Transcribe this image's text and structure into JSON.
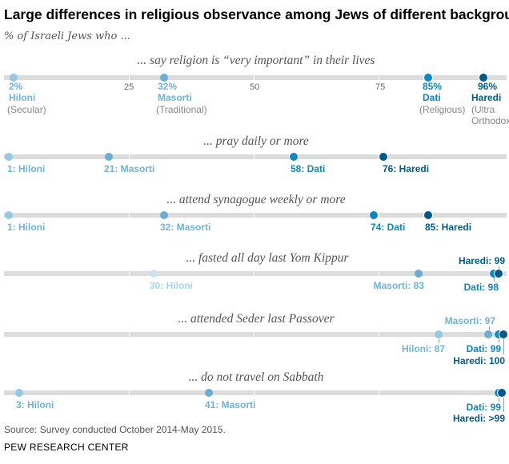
{
  "title": "Large differences in religious observance among Jews of different backgrounds",
  "subtitle": "% of Israeli Jews who ...",
  "source": "Source: Survey conducted October 2014-May 2015.",
  "org": "PEW RESEARCH CENTER",
  "chart_data": {
    "type": "dot",
    "xlim": [
      0,
      100
    ],
    "ticks": [
      "25",
      "50",
      "75"
    ],
    "colors": {
      "Hiloni": "#92c8e8",
      "Masorti": "#6aaed6",
      "Dati": "#0b8bc5",
      "Haredi": "#005a8c"
    },
    "group_notes": {
      "Hiloni": "(Secular)",
      "Masorti": "(Traditional)",
      "Dati": "(Religious)",
      "Haredi_1": "(Ultra",
      "Haredi_2": "Orthodox)"
    },
    "rows": [
      {
        "title": "... say religion is “very important” in their lives",
        "points": [
          {
            "group": "Hiloni",
            "value": 2,
            "label": "2%"
          },
          {
            "group": "Masorti",
            "value": 32,
            "label": "32%"
          },
          {
            "group": "Dati",
            "value": 85,
            "label": "85%"
          },
          {
            "group": "Haredi",
            "value": 96,
            "label": "96%"
          }
        ]
      },
      {
        "title": "... pray daily or more",
        "points": [
          {
            "group": "Hiloni",
            "value": 1,
            "label": "1: Hiloni"
          },
          {
            "group": "Masorti",
            "value": 21,
            "label": "21: Masorti"
          },
          {
            "group": "Dati",
            "value": 58,
            "label": "58: Dati"
          },
          {
            "group": "Haredi",
            "value": 76,
            "label": "76: Haredi"
          }
        ]
      },
      {
        "title": "... attend synagogue weekly or more",
        "points": [
          {
            "group": "Hiloni",
            "value": 1,
            "label": "1: Hiloni"
          },
          {
            "group": "Masorti",
            "value": 32,
            "label": "32: Masorti"
          },
          {
            "group": "Dati",
            "value": 74,
            "label": "74: Dati"
          },
          {
            "group": "Haredi",
            "value": 85,
            "label": "85: Haredi"
          }
        ]
      },
      {
        "title": "... fasted all day last Yom Kippur",
        "points": [
          {
            "group": "Hiloni",
            "value": 30,
            "label": "30: Hiloni"
          },
          {
            "group": "Masorti",
            "value": 83,
            "label": "Masorti: 83"
          },
          {
            "group": "Dati",
            "value": 98,
            "label": "Dati: 98"
          },
          {
            "group": "Haredi",
            "value": 99,
            "label": "Haredi: 99"
          }
        ]
      },
      {
        "title": "... attended Seder last Passover",
        "points": [
          {
            "group": "Hiloni",
            "value": 87,
            "label": "Hiloni: 87"
          },
          {
            "group": "Masorti",
            "value": 97,
            "label": "Masorti: 97"
          },
          {
            "group": "Dati",
            "value": 99,
            "label": "Dati: 99"
          },
          {
            "group": "Haredi",
            "value": 100,
            "label": "Haredi: 100"
          }
        ]
      },
      {
        "title": "... do not travel on Sabbath",
        "points": [
          {
            "group": "Hiloni",
            "value": 3,
            "label": "3: Hiloni"
          },
          {
            "group": "Masorti",
            "value": 41,
            "label": "41: Masorti"
          },
          {
            "group": "Dati",
            "value": 99,
            "label": "Dati: 99"
          },
          {
            "group": "Haredi",
            "value": ">99",
            "label": "Haredi: >99"
          }
        ]
      }
    ]
  }
}
